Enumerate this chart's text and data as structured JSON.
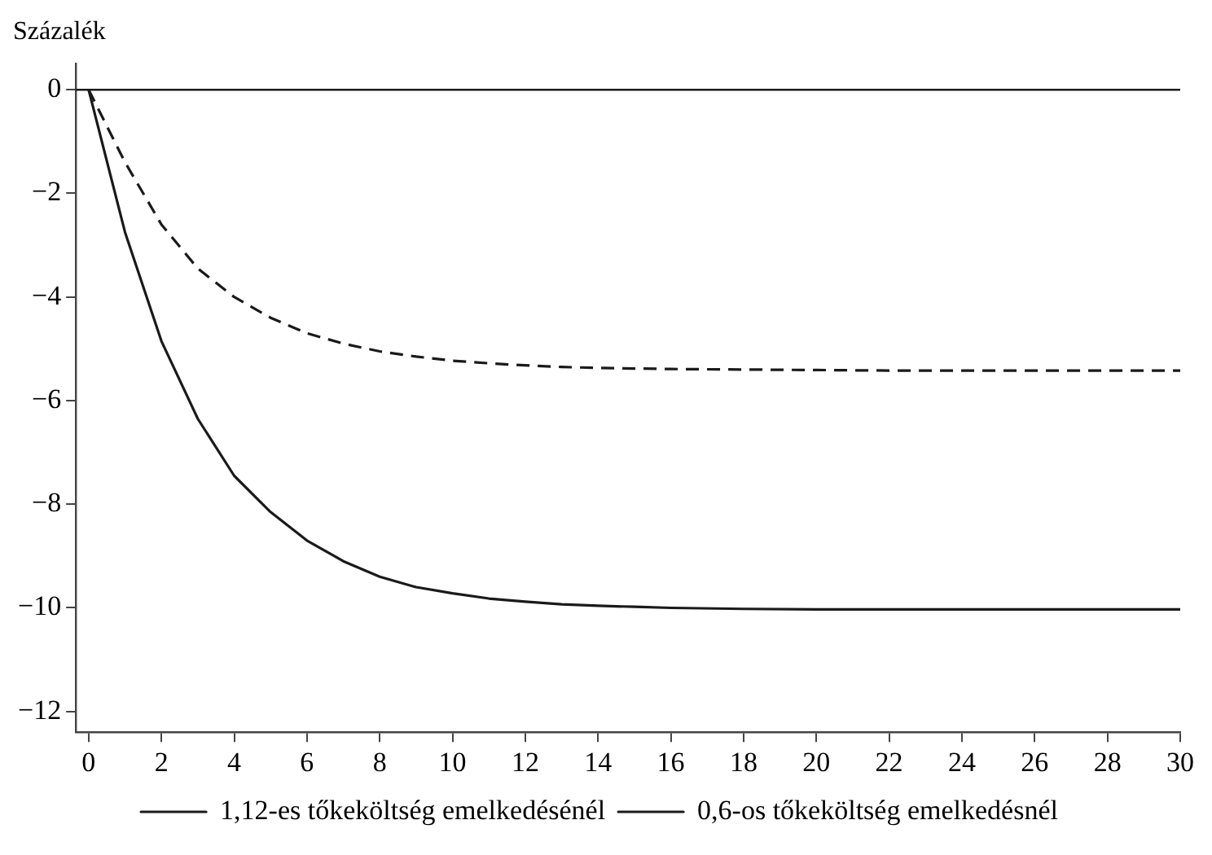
{
  "chart_data": {
    "type": "line",
    "ylabel": "Százalék",
    "x": [
      0,
      1,
      2,
      3,
      4,
      5,
      6,
      7,
      8,
      9,
      10,
      11,
      12,
      13,
      14,
      15,
      16,
      18,
      20,
      22,
      24,
      26,
      28,
      30
    ],
    "series": [
      {
        "name": "1,12-es tőkeköltség emelkedésénél",
        "color": "#1a1a1a",
        "line_style": "solid",
        "values": [
          0,
          -2.75,
          -4.85,
          -6.35,
          -7.45,
          -8.15,
          -8.7,
          -9.1,
          -9.4,
          -9.6,
          -9.72,
          -9.82,
          -9.88,
          -9.93,
          -9.96,
          -9.98,
          -10.0,
          -10.02,
          -10.03,
          -10.03,
          -10.03,
          -10.03,
          -10.03,
          -10.03
        ]
      },
      {
        "name": "0,6-os tőkeköltség emelkedésnél",
        "color": "#1a1a1a",
        "line_style": "dashed",
        "values": [
          0,
          -1.4,
          -2.6,
          -3.45,
          -4.0,
          -4.4,
          -4.7,
          -4.9,
          -5.05,
          -5.15,
          -5.23,
          -5.28,
          -5.32,
          -5.35,
          -5.37,
          -5.38,
          -5.39,
          -5.4,
          -5.41,
          -5.42,
          -5.42,
          -5.42,
          -5.42,
          -5.42
        ]
      }
    ],
    "xlim": [
      -0.35,
      30
    ],
    "xticks": [
      0,
      2,
      4,
      6,
      8,
      10,
      12,
      14,
      16,
      18,
      20,
      22,
      24,
      26,
      28,
      30
    ],
    "ylim": [
      -12.4,
      0.5
    ],
    "yticks": [
      -12,
      -10,
      -8,
      -6,
      -4,
      -2,
      0
    ],
    "ref_lines": [
      {
        "axis": "y",
        "value": 0,
        "color": "#1a1a1a"
      }
    ],
    "grid": false,
    "legend": "bottom",
    "marker": "none"
  }
}
